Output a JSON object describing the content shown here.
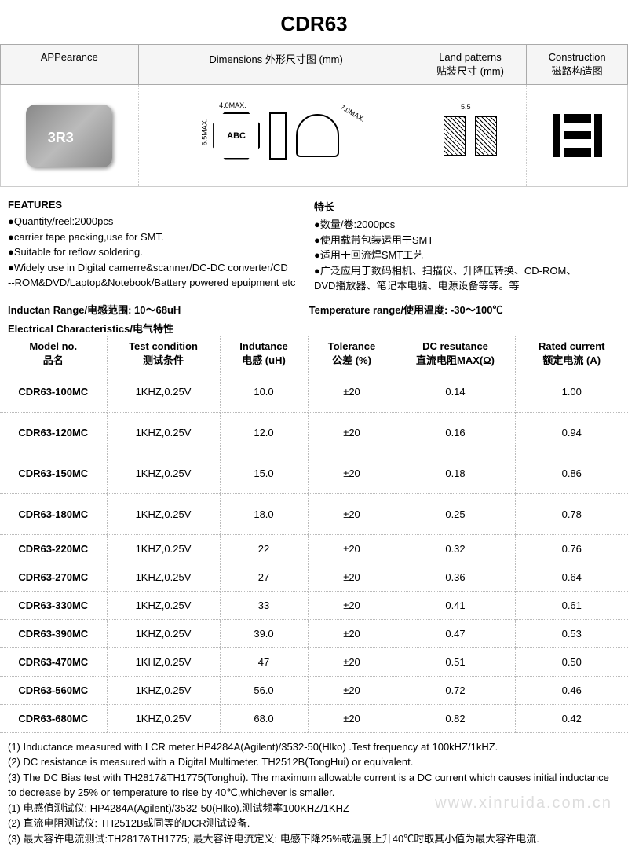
{
  "title": "CDR63",
  "headers": {
    "appearance": "APPearance",
    "dimensions": "Dimensions 外形尺寸图 (mm)",
    "land": "Land patterns\n贴装尺寸 (mm)",
    "construction": "Construction\n磁路构造图"
  },
  "diagram_labels": {
    "abc": "ABC",
    "w_max": "4.0MAX.",
    "h_max": "6.5MAX.",
    "d_max": "7.0MAX.",
    "land_w": "5.5"
  },
  "features": {
    "en_title": "FEATURES",
    "en_items": [
      "●Quantity/reel:2000pcs",
      "●carrier tape packing,use for SMT.",
      "●Suitable for reflow soldering.",
      "●Widely use in Digital camerre&scanner/DC-DC converter/CD",
      "  --ROM&DVD/Laptop&Notebook/Battery powered epuipment etc"
    ],
    "cn_title": "特长",
    "cn_items": [
      "●数量/卷:2000pcs",
      "●使用载带包装运用于SMT",
      "●适用于回流焊SMT工艺",
      "●广泛应用于数码相机、扫描仪、升降压转换、CD-ROM、",
      "DVD播放器、笔记本电脑、电源设备等等。等"
    ]
  },
  "ranges": {
    "inductance": "Inductan Range/电感范围: 10～68uH",
    "temperature": "Temperature range/使用温度: -30～100℃"
  },
  "elec_title": "Electrical Characteristics/电气特性",
  "table": {
    "columns": [
      {
        "en": "Model no.",
        "cn": "品名"
      },
      {
        "en": "Test condition",
        "cn": "测试条件"
      },
      {
        "en": "Indutance",
        "cn": "电感 (uH)"
      },
      {
        "en": "Tolerance",
        "cn": "公差 (%)"
      },
      {
        "en": "DC resutance",
        "cn": "直流电阻MAX(Ω)"
      },
      {
        "en": "Rated current",
        "cn": "额定电流 (A)"
      }
    ],
    "rows": [
      [
        "CDR63-100MC",
        "1KHZ,0.25V",
        "10.0",
        "±20",
        "0.14",
        "1.00"
      ],
      [
        "CDR63-120MC",
        "1KHZ,0.25V",
        "12.0",
        "±20",
        "0.16",
        "0.94"
      ],
      [
        "CDR63-150MC",
        "1KHZ,0.25V",
        "15.0",
        "±20",
        "0.18",
        "0.86"
      ],
      [
        "CDR63-180MC",
        "1KHZ,0.25V",
        "18.0",
        "±20",
        "0.25",
        "0.78"
      ],
      [
        "CDR63-220MC",
        "1KHZ,0.25V",
        "22",
        "±20",
        "0.32",
        "0.76"
      ],
      [
        "CDR63-270MC",
        "1KHZ,0.25V",
        "27",
        "±20",
        "0.36",
        "0.64"
      ],
      [
        "CDR63-330MC",
        "1KHZ,0.25V",
        "33",
        "±20",
        "0.41",
        "0.61"
      ],
      [
        "CDR63-390MC",
        "1KHZ,0.25V",
        "39.0",
        "±20",
        "0.47",
        "0.53"
      ],
      [
        "CDR63-470MC",
        "1KHZ,0.25V",
        "47",
        "±20",
        "0.51",
        "0.50"
      ],
      [
        "CDR63-560MC",
        "1KHZ,0.25V",
        "56.0",
        "±20",
        "0.72",
        "0.46"
      ],
      [
        "CDR63-680MC",
        "1KHZ,0.25V",
        "68.0",
        "±20",
        "0.82",
        "0.42"
      ]
    ],
    "tall_rows": 4
  },
  "notes": [
    "(1) Inductance measured with LCR meter.HP4284A(Agilent)/3532-50(Hlko) .Test frequency at 100kHZ/1kHZ.",
    "(2) DC resistance is measured with a Digital Multimeter.  TH2512B(TongHui) or equivalent.",
    "(3) The DC Bias test with TH2817&TH1775(Tonghui). The maximum allowable current is a DC current which causes initial inductance to decrease by 25% or temperature to rise by 40℃,whichever is smaller.",
    "(1) 电感值测试仪: HP4284A(Agilent)/3532-50(Hlko).测试频率100KHZ/1KHZ",
    "(2) 直流电阻测试仪: TH2512B或同等的DCR测试设备.",
    "(3) 最大容许电流测试:TH2817&TH1775; 最大容许电流定义: 电感下降25%或温度上升40℃时取其小值为最大容许电流."
  ],
  "watermark": "www.xinruida.com.cn",
  "col_widths": [
    "17%",
    "18%",
    "14%",
    "14%",
    "19%",
    "18%"
  ]
}
